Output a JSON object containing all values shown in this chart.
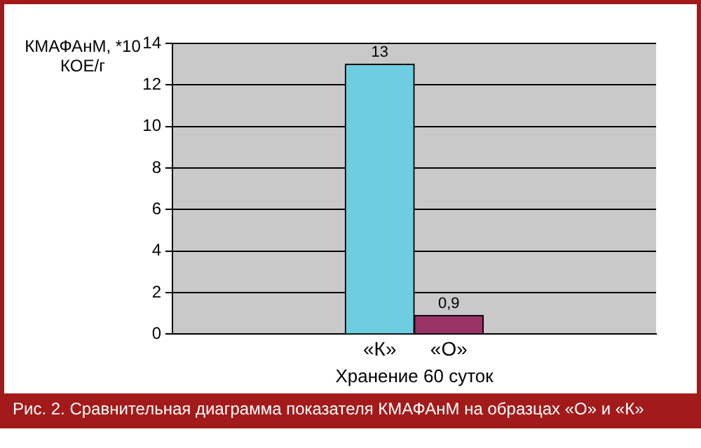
{
  "chart_data": {
    "type": "bar",
    "title": "Рис. 2. Сравнительная диаграмма показателя КМАФАнМ на образцах «О» и «К»",
    "ylabel": "КМАФАнМ, *10 КОЕ/г",
    "xlabel": "Хранение 60 суток",
    "categories": [
      "«К»",
      "«О»"
    ],
    "values": [
      13,
      0.9
    ],
    "colors": [
      "#6ecde0",
      "#993366"
    ],
    "value_labels": [
      "13",
      "0,9"
    ],
    "ylim": [
      0,
      14
    ],
    "yticks": [
      0,
      2,
      4,
      6,
      8,
      10,
      12,
      14
    ],
    "grid": "y",
    "legend": false
  }
}
